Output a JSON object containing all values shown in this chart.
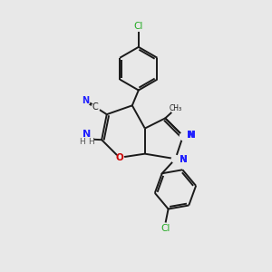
{
  "background_color": "#e8e8e8",
  "bond_color": "#1a1a1a",
  "N_color": "#2020ff",
  "O_color": "#cc0000",
  "Cl_color": "#22aa22",
  "H_color": "#555555",
  "figsize": [
    3.0,
    3.0
  ],
  "dpi": 100,
  "xlim": [
    0,
    10
  ],
  "ylim": [
    0,
    10.5
  ]
}
